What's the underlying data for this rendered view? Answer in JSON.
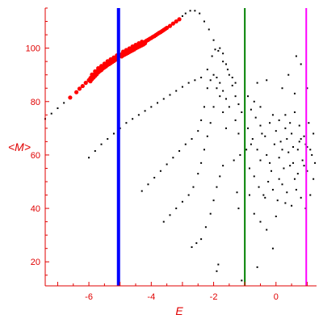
{
  "chart_data": {
    "type": "scatter",
    "title": "",
    "xlabel": "E",
    "ylabel": "<M>",
    "xlim": [
      -7.4,
      1.3
    ],
    "ylim": [
      11,
      115
    ],
    "x_ticks": [
      -6,
      -4,
      -2,
      0
    ],
    "y_ticks": [
      20,
      40,
      60,
      80,
      100
    ],
    "grid": false,
    "colors": {
      "axis": "#e00000",
      "black_points": "#000000",
      "red_points": "#ff0000",
      "blue_line": "#0000ff",
      "green_line": "#008000",
      "magenta_line": "#ff00ff"
    },
    "vertical_lines": [
      {
        "x": -5.05,
        "color": "#0000ff",
        "width": "thick"
      },
      {
        "x": -1.0,
        "color": "#008000",
        "width": "medium"
      },
      {
        "x": 0.97,
        "color": "#ff00ff",
        "width": "medium"
      }
    ],
    "series": [
      {
        "color": "#000000",
        "style": "sparse-dots",
        "points": [
          [
            -7.4,
            73.5
          ],
          [
            -7.2,
            75.5
          ],
          [
            -7.0,
            77.5
          ],
          [
            -6.8,
            79.5
          ],
          [
            -6.6,
            81.5
          ],
          [
            -6.4,
            83.5
          ],
          [
            -6.2,
            85.8
          ],
          [
            -6.0,
            88
          ],
          [
            -5.8,
            90
          ],
          [
            -5.6,
            92
          ],
          [
            -5.4,
            94
          ],
          [
            -5.2,
            95.5
          ],
          [
            -4.8,
            98
          ],
          [
            -4.6,
            99.5
          ],
          [
            -4.4,
            101
          ],
          [
            -4.2,
            102.5
          ],
          [
            -4.0,
            104
          ],
          [
            -3.8,
            105.5
          ],
          [
            -3.6,
            107
          ],
          [
            -3.4,
            108.5
          ],
          [
            -3.2,
            110
          ],
          [
            -3.0,
            112
          ],
          [
            -2.9,
            113
          ],
          [
            -2.75,
            114
          ],
          [
            -2.6,
            114
          ],
          [
            -2.45,
            113
          ],
          [
            -2.3,
            110
          ],
          [
            -2.15,
            107
          ],
          [
            -2.0,
            103
          ],
          [
            -1.85,
            99
          ],
          [
            -1.7,
            95
          ],
          [
            -1.55,
            92
          ],
          [
            -1.4,
            89
          ],
          [
            -1.3,
            87
          ],
          [
            -6.0,
            59
          ],
          [
            -5.8,
            61.5
          ],
          [
            -5.6,
            64
          ],
          [
            -5.4,
            66
          ],
          [
            -5.2,
            68
          ],
          [
            -5.0,
            70
          ],
          [
            -4.8,
            72
          ],
          [
            -4.6,
            73.5
          ],
          [
            -4.4,
            75
          ],
          [
            -4.2,
            76.5
          ],
          [
            -4.0,
            78
          ],
          [
            -3.8,
            79.5
          ],
          [
            -3.6,
            81
          ],
          [
            -3.4,
            82.5
          ],
          [
            -3.2,
            84
          ],
          [
            -3.0,
            85.5
          ],
          [
            -2.8,
            87
          ],
          [
            -2.6,
            88
          ],
          [
            -2.4,
            89
          ],
          [
            -2.2,
            92
          ],
          [
            -2.05,
            97
          ],
          [
            -1.95,
            99.5
          ],
          [
            -1.8,
            100
          ],
          [
            -1.7,
            98
          ],
          [
            -1.6,
            94
          ],
          [
            -1.5,
            90
          ],
          [
            -1.4,
            86
          ],
          [
            -1.3,
            82
          ],
          [
            -1.2,
            79
          ],
          [
            -1.1,
            76
          ],
          [
            -4.3,
            46.5
          ],
          [
            -4.1,
            49
          ],
          [
            -3.9,
            51.5
          ],
          [
            -3.7,
            54
          ],
          [
            -3.5,
            56.5
          ],
          [
            -3.3,
            59
          ],
          [
            -3.1,
            61.5
          ],
          [
            -2.9,
            64
          ],
          [
            -2.7,
            66
          ],
          [
            -2.5,
            69
          ],
          [
            -2.4,
            73
          ],
          [
            -2.3,
            78
          ],
          [
            -2.2,
            85
          ],
          [
            -2.1,
            88
          ],
          [
            -2.0,
            90
          ],
          [
            -1.9,
            89
          ],
          [
            -1.8,
            87
          ],
          [
            -1.7,
            84
          ],
          [
            -1.6,
            81
          ],
          [
            -1.5,
            78
          ],
          [
            -3.6,
            35
          ],
          [
            -3.4,
            37.5
          ],
          [
            -3.2,
            40
          ],
          [
            -3.0,
            42.5
          ],
          [
            -2.8,
            45
          ],
          [
            -2.65,
            48
          ],
          [
            -2.5,
            53
          ],
          [
            -2.4,
            57
          ],
          [
            -2.3,
            62
          ],
          [
            -2.2,
            67
          ],
          [
            -2.1,
            72
          ],
          [
            -2.0,
            78
          ],
          [
            -1.9,
            85
          ],
          [
            -1.8,
            82
          ],
          [
            -1.7,
            76
          ],
          [
            -1.6,
            70
          ],
          [
            -2.7,
            25.5
          ],
          [
            -2.55,
            27
          ],
          [
            -2.4,
            28.5
          ],
          [
            -2.25,
            33
          ],
          [
            -2.1,
            38
          ],
          [
            -2.0,
            43
          ],
          [
            -1.9,
            48
          ],
          [
            -1.8,
            52
          ],
          [
            -1.7,
            56
          ],
          [
            -1.9,
            16.5
          ],
          [
            -1.85,
            19
          ],
          [
            -1.1,
            13
          ],
          [
            -0.6,
            18
          ],
          [
            -0.1,
            25
          ],
          [
            -0.9,
            82
          ],
          [
            -0.7,
            80
          ],
          [
            -0.5,
            78
          ],
          [
            -0.3,
            88
          ],
          [
            -0.1,
            75
          ],
          [
            0.1,
            73
          ],
          [
            0.3,
            70
          ],
          [
            0.5,
            68
          ],
          [
            0.8,
            66
          ],
          [
            1.0,
            63
          ],
          [
            -0.9,
            70
          ],
          [
            -0.75,
            66
          ],
          [
            -0.6,
            62
          ],
          [
            -0.45,
            68
          ],
          [
            -0.3,
            60
          ],
          [
            -0.2,
            57
          ],
          [
            -0.05,
            64
          ],
          [
            0.1,
            59
          ],
          [
            0.25,
            55
          ],
          [
            0.4,
            61
          ],
          [
            0.55,
            57
          ],
          [
            0.7,
            53
          ],
          [
            0.85,
            58
          ],
          [
            1.0,
            54
          ],
          [
            1.15,
            60
          ],
          [
            -0.85,
            55
          ],
          [
            -0.7,
            52
          ],
          [
            -0.55,
            48
          ],
          [
            -0.4,
            45
          ],
          [
            -0.25,
            50
          ],
          [
            -0.1,
            47
          ],
          [
            0.05,
            43
          ],
          [
            0.2,
            49
          ],
          [
            0.35,
            46
          ],
          [
            0.5,
            41
          ],
          [
            0.65,
            47
          ],
          [
            0.8,
            44
          ],
          [
            0.95,
            40
          ],
          [
            1.1,
            45
          ],
          [
            -0.8,
            77
          ],
          [
            -0.65,
            74
          ],
          [
            -0.5,
            71
          ],
          [
            -0.35,
            67
          ],
          [
            -0.2,
            72
          ],
          [
            0.0,
            69
          ],
          [
            0.15,
            65
          ],
          [
            0.3,
            75
          ],
          [
            0.45,
            72
          ],
          [
            0.6,
            76
          ],
          [
            0.75,
            71
          ],
          [
            0.9,
            67
          ],
          [
            1.05,
            72
          ],
          [
            1.2,
            68
          ],
          [
            -0.6,
            87
          ],
          [
            0.2,
            85
          ],
          [
            0.4,
            90
          ],
          [
            0.6,
            83
          ],
          [
            0.65,
            97
          ],
          [
            0.8,
            94
          ],
          [
            1.0,
            85
          ],
          [
            -0.95,
            62
          ],
          [
            -0.85,
            45
          ],
          [
            -0.7,
            38
          ],
          [
            -0.5,
            35
          ],
          [
            -0.3,
            32
          ],
          [
            0.0,
            37
          ],
          [
            0.3,
            42
          ],
          [
            0.6,
            51
          ],
          [
            0.9,
            56
          ],
          [
            1.2,
            51
          ],
          [
            -0.5,
            58
          ],
          [
            -0.15,
            54
          ],
          [
            0.2,
            62
          ],
          [
            0.45,
            56
          ],
          [
            0.7,
            62
          ],
          [
            0.95,
            64
          ],
          [
            1.1,
            62
          ],
          [
            1.25,
            57
          ],
          [
            -0.35,
            44
          ],
          [
            0.1,
            51
          ],
          [
            -1.2,
            68
          ],
          [
            -1.3,
            73
          ],
          [
            -1.15,
            60
          ],
          [
            -1.25,
            46
          ],
          [
            -1.2,
            40
          ],
          [
            -1.35,
            58
          ],
          [
            -0.8,
            64
          ],
          [
            0.35,
            66
          ],
          [
            0.55,
            63
          ],
          [
            0.75,
            65
          ]
        ]
      },
      {
        "color": "#ff0000",
        "style": "dense-dots",
        "points": [
          [
            -6.6,
            81.5
          ],
          [
            -6.4,
            83.5
          ],
          [
            -6.3,
            84.8
          ],
          [
            -6.2,
            85.8
          ],
          [
            -6.1,
            87
          ],
          [
            -6.0,
            88
          ],
          [
            -5.95,
            88.8
          ],
          [
            -5.9,
            89.3
          ],
          [
            -5.85,
            90
          ],
          [
            -5.8,
            90.5
          ],
          [
            -5.75,
            91.2
          ],
          [
            -5.7,
            91.8
          ],
          [
            -5.65,
            92.2
          ],
          [
            -5.6,
            92.6
          ],
          [
            -5.55,
            93.1
          ],
          [
            -5.5,
            93.5
          ],
          [
            -5.45,
            94
          ],
          [
            -5.4,
            94.4
          ],
          [
            -5.35,
            94.8
          ],
          [
            -5.3,
            95.1
          ],
          [
            -5.25,
            95.5
          ],
          [
            -5.2,
            95.8
          ],
          [
            -5.15,
            96.3
          ],
          [
            -5.1,
            96.6
          ],
          [
            -5.05,
            97
          ],
          [
            -5.0,
            97.3
          ],
          [
            -4.95,
            97.7
          ],
          [
            -4.9,
            98
          ],
          [
            -4.85,
            98.3
          ],
          [
            -4.8,
            98.6
          ],
          [
            -4.75,
            98.9
          ],
          [
            -4.7,
            99.2
          ],
          [
            -4.65,
            99.6
          ],
          [
            -4.6,
            99.9
          ],
          [
            -4.55,
            100.2
          ],
          [
            -4.5,
            100.5
          ],
          [
            -4.45,
            100.8
          ],
          [
            -4.4,
            101.1
          ],
          [
            -4.35,
            101.4
          ],
          [
            -4.3,
            101.7
          ],
          [
            -4.25,
            102
          ],
          [
            -4.2,
            102.4
          ],
          [
            -4.1,
            103.1
          ],
          [
            -4.0,
            103.8
          ],
          [
            -3.9,
            104.5
          ],
          [
            -3.8,
            105.3
          ],
          [
            -3.7,
            106
          ],
          [
            -3.6,
            106.8
          ],
          [
            -3.5,
            107.6
          ],
          [
            -3.4,
            108.3
          ],
          [
            -3.3,
            109.2
          ],
          [
            -3.2,
            110
          ],
          [
            -3.1,
            110.8
          ],
          [
            -5.95,
            87.6
          ],
          [
            -5.9,
            88.4
          ],
          [
            -5.85,
            89
          ],
          [
            -5.8,
            89.6
          ],
          [
            -5.75,
            90.2
          ],
          [
            -5.7,
            90.9
          ],
          [
            -5.65,
            91.4
          ],
          [
            -5.6,
            91.8
          ],
          [
            -5.55,
            92.4
          ],
          [
            -5.5,
            92.8
          ],
          [
            -5.45,
            93.2
          ],
          [
            -5.4,
            93.7
          ],
          [
            -5.35,
            94
          ],
          [
            -5.3,
            94.4
          ],
          [
            -5.25,
            94.8
          ],
          [
            -5.2,
            95.2
          ],
          [
            -5.15,
            95.6
          ],
          [
            -5.1,
            95.9
          ],
          [
            -4.95,
            96.9
          ],
          [
            -4.9,
            97.3
          ],
          [
            -4.85,
            97.6
          ],
          [
            -4.8,
            97.9
          ],
          [
            -4.75,
            98.2
          ],
          [
            -4.7,
            98.6
          ],
          [
            -4.65,
            98.9
          ],
          [
            -4.6,
            99.2
          ],
          [
            -4.55,
            99.5
          ],
          [
            -4.5,
            99.9
          ],
          [
            -4.45,
            100.2
          ],
          [
            -4.4,
            100.5
          ],
          [
            -4.35,
            100.8
          ],
          [
            -4.3,
            101.1
          ],
          [
            -4.25,
            101.4
          ],
          [
            -5.9,
            90.1
          ],
          [
            -5.8,
            91.3
          ],
          [
            -5.7,
            92.5
          ],
          [
            -5.6,
            93.3
          ],
          [
            -5.5,
            94.2
          ],
          [
            -5.4,
            95.1
          ],
          [
            -5.3,
            95.8
          ],
          [
            -5.2,
            96.5
          ],
          [
            -5.1,
            97.3
          ],
          [
            -4.9,
            98.7
          ],
          [
            -4.8,
            99.3
          ],
          [
            -4.7,
            99.9
          ],
          [
            -4.6,
            100.6
          ],
          [
            -4.5,
            101.2
          ],
          [
            -4.4,
            101.8
          ],
          [
            -4.3,
            102.4
          ],
          [
            -4.2,
            101.8
          ],
          [
            -4.15,
            102.8
          ],
          [
            -4.05,
            103.5
          ],
          [
            -3.95,
            104.2
          ],
          [
            -3.85,
            104.9
          ],
          [
            -3.75,
            105.7
          ],
          [
            -3.65,
            106.4
          ],
          [
            -3.55,
            107.2
          ]
        ]
      }
    ]
  }
}
